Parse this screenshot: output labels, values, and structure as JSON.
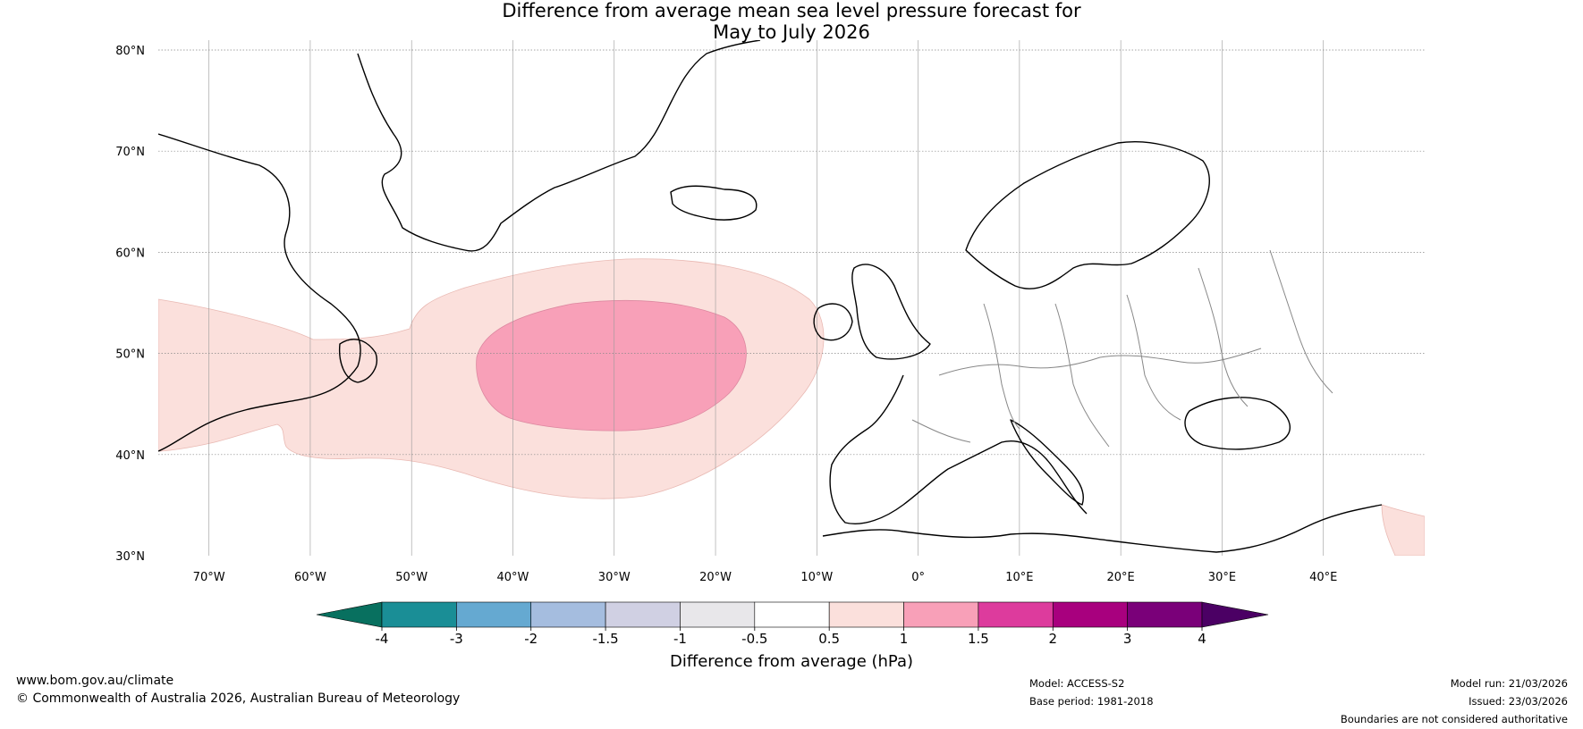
{
  "title": {
    "line1": "Difference from average mean sea level pressure forecast for",
    "line2": "May to July 2026"
  },
  "map": {
    "lat_labels": [
      "80°N",
      "70°N",
      "60°N",
      "50°N",
      "40°N",
      "30°N"
    ],
    "lon_labels": [
      "70°W",
      "60°W",
      "50°W",
      "40°W",
      "30°W",
      "20°W",
      "10°W",
      "0°",
      "10°E",
      "20°E",
      "30°E",
      "40°E"
    ],
    "lon_range": [
      -75,
      50
    ],
    "lat_range": [
      30,
      81
    ],
    "anomalies": [
      {
        "label": "0.5 to 1 hPa",
        "region": "North Atlantic (broad)",
        "color": "#fbe0dc"
      },
      {
        "label": "1 to 1.5 hPa",
        "region": "Central North Atlantic",
        "color": "#f8a0b8"
      },
      {
        "label": "0.5 to 1 hPa",
        "region": "Eastern Mediterranean corner",
        "color": "#fbe0dc"
      }
    ]
  },
  "colorbar": {
    "label": "Difference from average (hPa)",
    "ticks": [
      "-4",
      "-3",
      "-2",
      "-1.5",
      "-1",
      "-0.5",
      "0.5",
      "1",
      "1.5",
      "2",
      "3",
      "4"
    ],
    "colors": [
      "#1a8e96",
      "#65a9d1",
      "#a5bddf",
      "#d0d0e3",
      "#e8e7ea",
      "#ffffff",
      "#fbe0dc",
      "#f8a0b8",
      "#dd3b9d",
      "#a8007e",
      "#7a0079"
    ],
    "extend_low": "#08705f",
    "extend_high": "#4b0064"
  },
  "footer": {
    "website": "www.bom.gov.au/climate",
    "copyright": "© Commonwealth of Australia 2026, Australian Bureau of Meteorology",
    "model": "Model: ACCESS-S2",
    "base_period": "Base period: 1981-2018",
    "model_run": "Model run: 21/03/2026",
    "issued": "Issued: 23/03/2026",
    "disclaimer": "Boundaries are not considered authoritative"
  }
}
